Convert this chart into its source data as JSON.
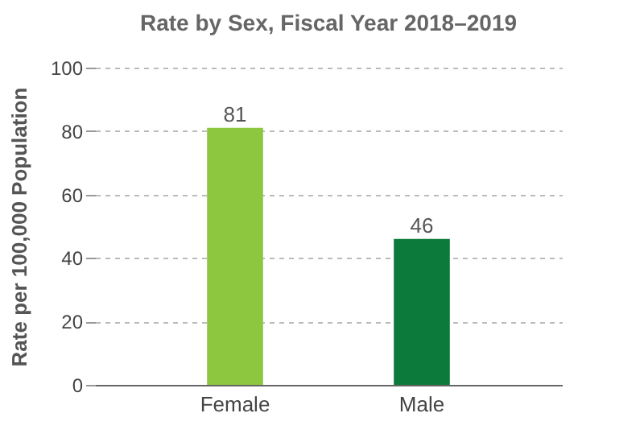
{
  "chart_data": {
    "type": "bar",
    "title": "Rate by Sex, Fiscal Year 2018–2019",
    "ylabel": "Rate per 100,000 Population",
    "categories": [
      "Female",
      "Male"
    ],
    "values": [
      81,
      46
    ],
    "colors": [
      "#8dc63f",
      "#0b7a3a"
    ],
    "ylim": [
      0,
      100
    ],
    "yticks": [
      0,
      20,
      40,
      60,
      80,
      100
    ],
    "grid": "y",
    "data_labels": true
  }
}
